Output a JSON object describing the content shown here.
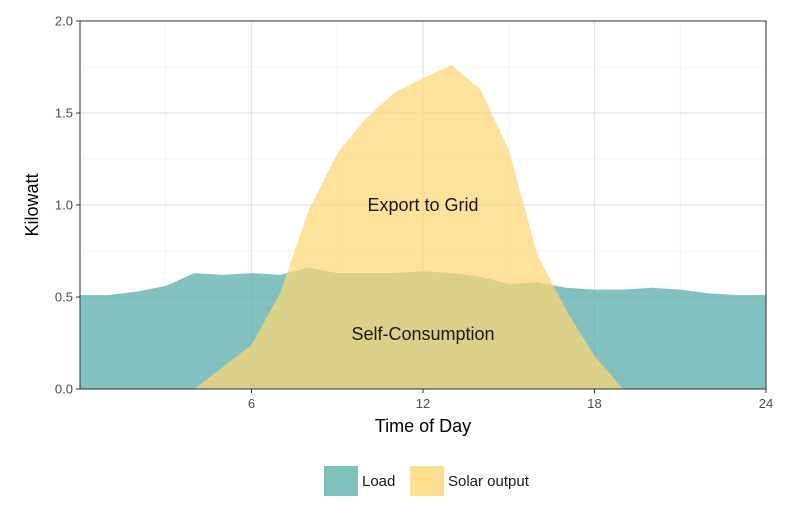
{
  "chart_data": {
    "type": "area",
    "xlabel": "Time of Day",
    "ylabel": "Kilowatt",
    "xlim": [
      0,
      24
    ],
    "ylim": [
      0,
      2.0
    ],
    "x_ticks": [
      6,
      12,
      18,
      24
    ],
    "y_ticks": [
      "0.0",
      "0.5",
      "1.0",
      "1.5",
      "2.0"
    ],
    "grid": true,
    "legend_position": "bottom",
    "series": [
      {
        "name": "Load",
        "color": "#5fb0ad",
        "x": [
          0,
          1,
          2,
          3,
          4,
          5,
          6,
          7,
          8,
          9,
          10,
          11,
          12,
          13,
          14,
          15,
          16,
          17,
          18,
          19,
          20,
          21,
          22,
          23,
          24
        ],
        "values": [
          0.51,
          0.51,
          0.53,
          0.56,
          0.63,
          0.62,
          0.63,
          0.62,
          0.66,
          0.63,
          0.63,
          0.63,
          0.64,
          0.63,
          0.61,
          0.57,
          0.58,
          0.55,
          0.54,
          0.54,
          0.55,
          0.54,
          0.52,
          0.51,
          0.51
        ]
      },
      {
        "name": "Solar output",
        "color": "#fdd673",
        "x": [
          0,
          4,
          6,
          7,
          8,
          9,
          10,
          11,
          12,
          13,
          14,
          15,
          16,
          17,
          18,
          19,
          24
        ],
        "values": [
          0,
          0.0,
          0.24,
          0.52,
          0.97,
          1.28,
          1.47,
          1.61,
          1.69,
          1.76,
          1.63,
          1.3,
          0.73,
          0.43,
          0.18,
          0.0,
          0
        ]
      }
    ],
    "annotations": [
      {
        "text": "Export to Grid",
        "x": 12,
        "y": 1.0
      },
      {
        "text": "Self-Consumption",
        "x": 12,
        "y": 0.3
      }
    ]
  }
}
